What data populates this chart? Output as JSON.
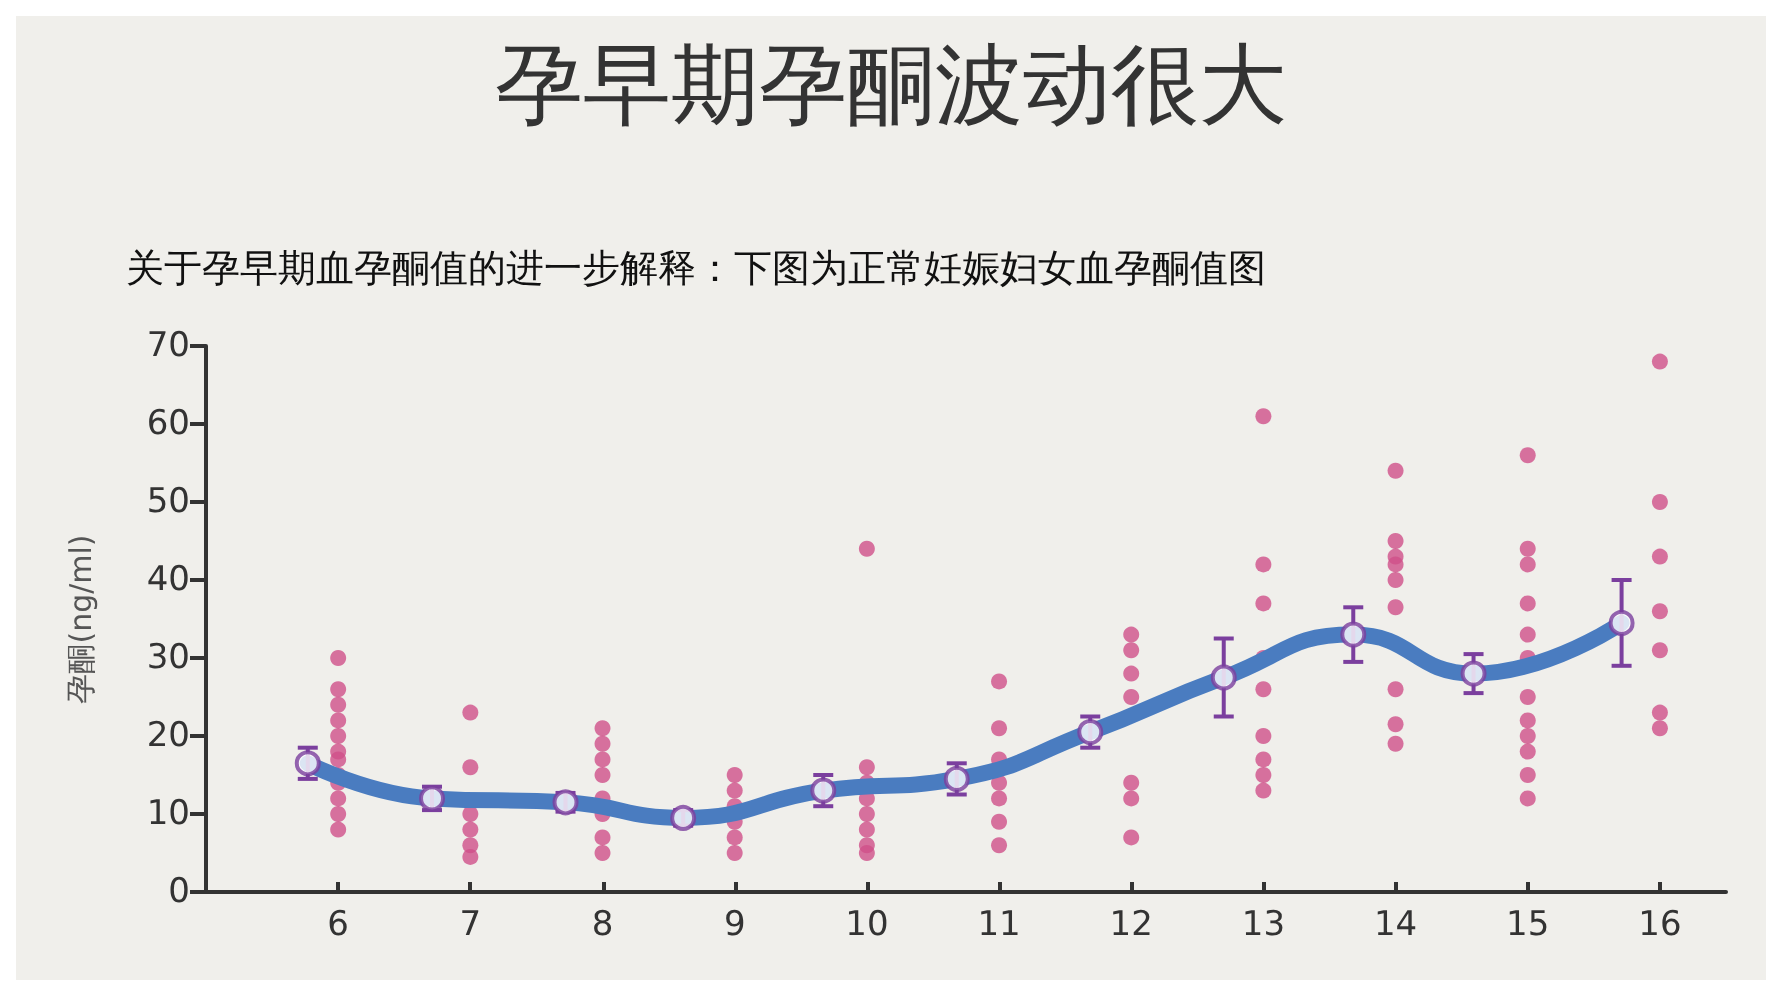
{
  "chart_data": {
    "type": "scatter",
    "title": "孕早期孕酮波动很大",
    "subtitle": "关于孕早期血孕酮值的进一步解释：下图为正常妊娠妇女血孕酮值图",
    "ylabel": "孕酮(ng/ml)",
    "xlim": [
      5,
      16.5
    ],
    "xticks": [
      6,
      7,
      8,
      9,
      10,
      11,
      12,
      13,
      14,
      15,
      16
    ],
    "ylim": [
      0,
      70
    ],
    "yticks": [
      0,
      10,
      20,
      30,
      40,
      50,
      60,
      70
    ],
    "series": [
      {
        "color": "#d0508a",
        "marker": "circle",
        "x": [
          6,
          6,
          6,
          6,
          6,
          6,
          6,
          6,
          6,
          6,
          6,
          6,
          7,
          7,
          7,
          7,
          7,
          7,
          8,
          8,
          8,
          8,
          8,
          8,
          8,
          8,
          9,
          9,
          9,
          9,
          9,
          9,
          10,
          10,
          10,
          10,
          10,
          10,
          10,
          10,
          11,
          11,
          11,
          11,
          11,
          11,
          11,
          12,
          12,
          12,
          12,
          12,
          12,
          12,
          13,
          13,
          13,
          13,
          13,
          13,
          13,
          13,
          13,
          14,
          14,
          14,
          14,
          14,
          14,
          14,
          14,
          14,
          15,
          15,
          15,
          15,
          15,
          15,
          15,
          15,
          15,
          15,
          15,
          15,
          16,
          16,
          16,
          16,
          16,
          16,
          16
        ],
        "values": [
          30,
          26,
          24,
          22,
          20,
          18,
          17,
          15,
          14,
          12,
          10,
          8,
          23,
          16,
          10,
          8,
          6,
          4.5,
          21,
          19,
          17,
          15,
          12,
          10,
          7,
          5,
          15,
          13,
          11,
          9,
          7,
          5,
          44,
          16,
          14,
          12,
          10,
          8,
          6,
          5,
          27,
          21,
          17,
          14,
          12,
          9,
          6,
          33,
          31,
          28,
          25,
          14,
          12,
          7,
          61,
          42,
          37,
          30,
          26,
          20,
          17,
          15,
          13,
          54,
          45,
          43,
          42,
          40,
          36.5,
          26,
          21.5,
          19,
          56,
          44,
          42,
          37,
          33,
          30,
          25,
          22,
          20,
          18,
          15,
          12,
          68,
          50,
          43,
          36,
          31,
          23,
          21
        ]
      },
      {
        "color": "#7b3f9e",
        "marker": "circle",
        "x": [
          5.77,
          6.71,
          7.72,
          8.61,
          9.67,
          10.68,
          11.69,
          12.7,
          13.68,
          14.59,
          15.71
        ],
        "values": [
          16.5,
          12,
          11.5,
          9.5,
          13,
          14.5,
          20.5,
          27.5,
          33,
          28,
          34.5
        ],
        "errors": [
          2,
          1.5,
          1.2,
          1,
          2,
          2,
          2,
          5,
          3.5,
          2.5,
          5.5
        ]
      },
      {
        "type": "line",
        "color": "#4a7cc0",
        "marker": "none",
        "line_style": "solid",
        "x": [
          5.77,
          6.71,
          7.72,
          8.61,
          9.67,
          10.68,
          11.69,
          12.7,
          13.68,
          14.59,
          15.71
        ],
        "values": [
          16.5,
          12,
          11.5,
          9.5,
          13,
          14.5,
          20.5,
          27.5,
          33,
          28,
          34.5
        ]
      }
    ]
  }
}
